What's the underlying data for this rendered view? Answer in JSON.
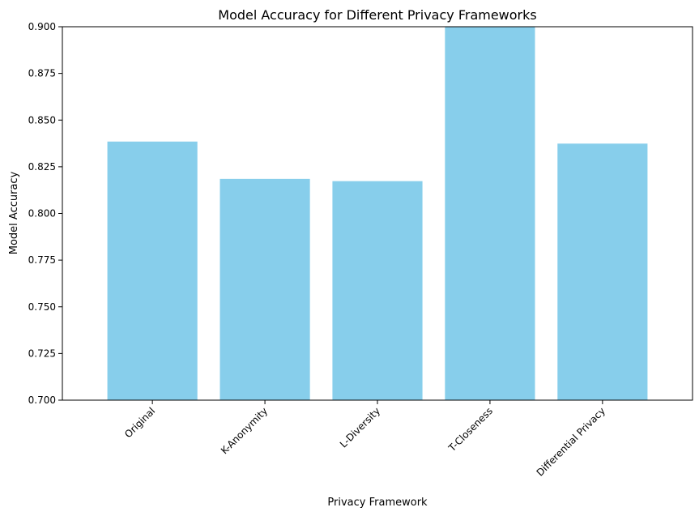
{
  "chart_data": {
    "type": "bar",
    "title": "Model Accuracy for Different Privacy Frameworks",
    "xlabel": "Privacy Framework",
    "ylabel": "Model Accuracy",
    "categories": [
      "Original",
      "K-Anonymity",
      "L-Diversity",
      "T-Closeness",
      "Differential Privacy"
    ],
    "values": [
      0.8385,
      0.8185,
      0.8173,
      0.91,
      0.8374
    ],
    "ylim": [
      0.7,
      0.9
    ],
    "yticks": [
      "0.700",
      "0.725",
      "0.750",
      "0.775",
      "0.800",
      "0.825",
      "0.850",
      "0.875",
      "0.900"
    ],
    "bar_color": "#87CEEB",
    "grid": false,
    "xtick_rotation_deg": 45
  }
}
